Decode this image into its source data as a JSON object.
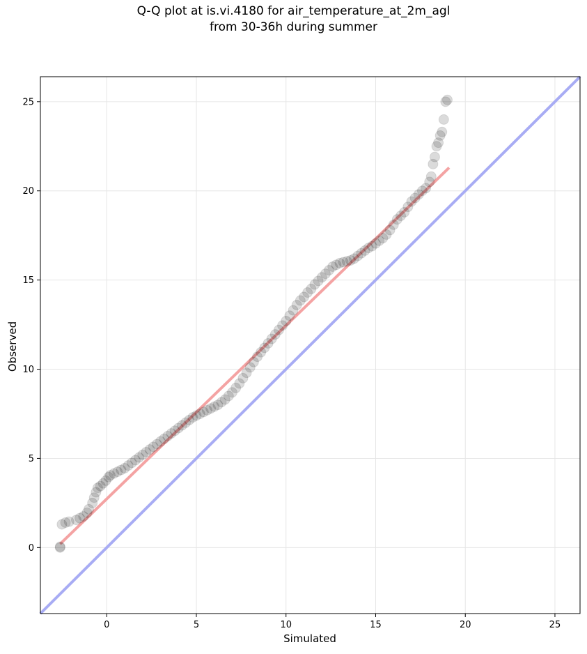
{
  "chart_data": {
    "type": "scatter",
    "title": "Q-Q plot at is.vi.4180 for air_temperature_at_2m_agl",
    "subtitle": "from 30-36h during summer",
    "xlabel": "Simulated",
    "ylabel": "Observed",
    "xlim": [
      -3.7,
      26.4
    ],
    "ylim": [
      -3.7,
      26.4
    ],
    "xticks": [
      0,
      5,
      10,
      15,
      20,
      25
    ],
    "yticks": [
      0,
      5,
      10,
      15,
      20,
      25
    ],
    "grid": true,
    "series": [
      {
        "kind": "quantile-points",
        "color": "#000000",
        "points": [
          [
            -2.6,
            0.0
          ],
          [
            -2.6,
            0.05
          ],
          [
            -2.5,
            1.3
          ],
          [
            -2.3,
            1.4
          ],
          [
            -2.1,
            1.45
          ],
          [
            -1.7,
            1.55
          ],
          [
            -1.5,
            1.65
          ],
          [
            -1.3,
            1.75
          ],
          [
            -1.1,
            1.95
          ],
          [
            -1.0,
            2.15
          ],
          [
            -0.8,
            2.5
          ],
          [
            -0.7,
            2.8
          ],
          [
            -0.6,
            3.1
          ],
          [
            -0.5,
            3.35
          ],
          [
            -0.35,
            3.45
          ],
          [
            -0.2,
            3.6
          ],
          [
            -0.05,
            3.75
          ],
          [
            0.1,
            3.95
          ],
          [
            0.2,
            4.05
          ],
          [
            0.4,
            4.15
          ],
          [
            0.6,
            4.25
          ],
          [
            0.8,
            4.35
          ],
          [
            1.0,
            4.45
          ],
          [
            1.2,
            4.6
          ],
          [
            1.4,
            4.75
          ],
          [
            1.6,
            4.9
          ],
          [
            1.8,
            5.05
          ],
          [
            2.0,
            5.2
          ],
          [
            2.2,
            5.35
          ],
          [
            2.4,
            5.5
          ],
          [
            2.6,
            5.65
          ],
          [
            2.8,
            5.8
          ],
          [
            3.0,
            5.95
          ],
          [
            3.2,
            6.1
          ],
          [
            3.4,
            6.25
          ],
          [
            3.6,
            6.4
          ],
          [
            3.8,
            6.55
          ],
          [
            4.0,
            6.7
          ],
          [
            4.2,
            6.85
          ],
          [
            4.4,
            7.0
          ],
          [
            4.6,
            7.15
          ],
          [
            4.8,
            7.3
          ],
          [
            5.0,
            7.4
          ],
          [
            5.2,
            7.5
          ],
          [
            5.4,
            7.6
          ],
          [
            5.6,
            7.7
          ],
          [
            5.8,
            7.8
          ],
          [
            6.0,
            7.9
          ],
          [
            6.2,
            8.0
          ],
          [
            6.4,
            8.15
          ],
          [
            6.6,
            8.3
          ],
          [
            6.8,
            8.5
          ],
          [
            7.0,
            8.7
          ],
          [
            7.2,
            8.95
          ],
          [
            7.4,
            9.2
          ],
          [
            7.6,
            9.5
          ],
          [
            7.8,
            9.8
          ],
          [
            8.0,
            10.1
          ],
          [
            8.2,
            10.4
          ],
          [
            8.4,
            10.7
          ],
          [
            8.6,
            10.95
          ],
          [
            8.8,
            11.2
          ],
          [
            9.0,
            11.45
          ],
          [
            9.2,
            11.7
          ],
          [
            9.4,
            11.95
          ],
          [
            9.6,
            12.2
          ],
          [
            9.8,
            12.45
          ],
          [
            10.0,
            12.7
          ],
          [
            10.2,
            13.0
          ],
          [
            10.4,
            13.3
          ],
          [
            10.6,
            13.6
          ],
          [
            10.8,
            13.85
          ],
          [
            11.0,
            14.05
          ],
          [
            11.2,
            14.3
          ],
          [
            11.4,
            14.5
          ],
          [
            11.6,
            14.75
          ],
          [
            11.8,
            14.95
          ],
          [
            12.0,
            15.15
          ],
          [
            12.2,
            15.35
          ],
          [
            12.4,
            15.55
          ],
          [
            12.6,
            15.75
          ],
          [
            12.8,
            15.85
          ],
          [
            13.0,
            15.95
          ],
          [
            13.2,
            16.0
          ],
          [
            13.4,
            16.05
          ],
          [
            13.6,
            16.1
          ],
          [
            13.8,
            16.2
          ],
          [
            14.0,
            16.35
          ],
          [
            14.2,
            16.5
          ],
          [
            14.4,
            16.65
          ],
          [
            14.6,
            16.8
          ],
          [
            14.8,
            16.9
          ],
          [
            15.0,
            17.05
          ],
          [
            15.2,
            17.2
          ],
          [
            15.4,
            17.35
          ],
          [
            15.6,
            17.55
          ],
          [
            15.8,
            17.8
          ],
          [
            16.0,
            18.1
          ],
          [
            16.2,
            18.4
          ],
          [
            16.4,
            18.6
          ],
          [
            16.6,
            18.8
          ],
          [
            16.8,
            19.1
          ],
          [
            17.0,
            19.4
          ],
          [
            17.2,
            19.6
          ],
          [
            17.4,
            19.8
          ],
          [
            17.6,
            20.0
          ],
          [
            17.8,
            20.15
          ],
          [
            18.0,
            20.5
          ],
          [
            18.1,
            20.8
          ],
          [
            18.2,
            21.5
          ],
          [
            18.3,
            21.9
          ],
          [
            18.4,
            22.5
          ],
          [
            18.5,
            22.7
          ],
          [
            18.6,
            23.1
          ],
          [
            18.7,
            23.3
          ],
          [
            18.8,
            24.0
          ],
          [
            18.9,
            25.0
          ],
          [
            19.0,
            25.1
          ]
        ]
      },
      {
        "kind": "fit-line",
        "color": "#f4a3a3",
        "x": [
          -2.6,
          19.1
        ],
        "y": [
          0.2,
          21.3
        ]
      },
      {
        "kind": "identity-line",
        "color": "#a8acf4",
        "x": [
          -3.7,
          26.4
        ],
        "y": [
          -3.7,
          26.4
        ]
      }
    ]
  }
}
